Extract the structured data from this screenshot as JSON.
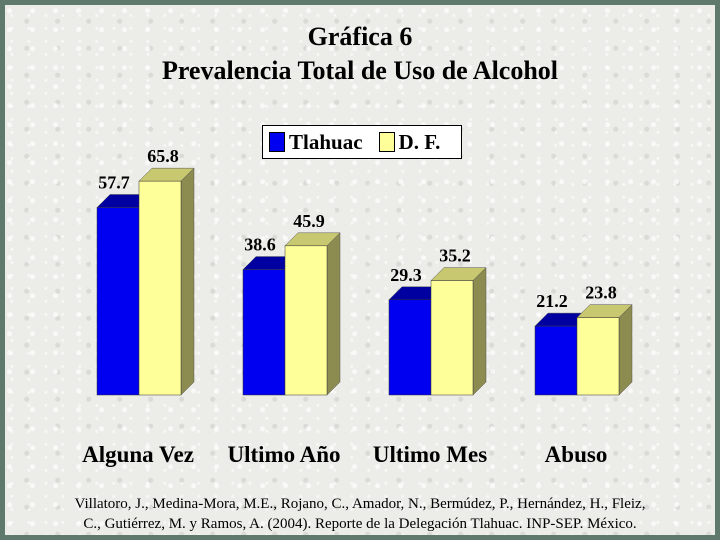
{
  "title": "Gráfica 6",
  "subtitle": "Prevalencia Total de Uso de Alcohol",
  "citation_line1": "Villatoro, J., Medina-Mora, M.E., Rojano, C., Amador, N., Bermúdez, P., Hernández, H., Fleiz,",
  "citation_line2": "C., Gutiérrez, M. y Ramos, A. (2004). Reporte de la Delegación Tlahuac. INP-SEP. México.",
  "colors": {
    "series_0_front": "#0000f0",
    "series_0_top": "#0000a0",
    "series_0_side": "#000080",
    "series_1_front": "#ffff99",
    "series_1_top": "#c8c870",
    "series_1_side": "#8c8c50"
  },
  "chart_data": {
    "type": "bar",
    "categories": [
      "Alguna Vez",
      "Ultimo Año",
      "Ultimo Mes",
      "Abuso"
    ],
    "series": [
      {
        "name": "Tlahuac",
        "values": [
          57.7,
          38.6,
          29.3,
          21.2
        ]
      },
      {
        "name": "D. F.",
        "values": [
          65.8,
          45.9,
          35.2,
          23.8
        ]
      }
    ],
    "ylim": [
      0,
      70
    ],
    "grid": false,
    "legend_position": "top-center",
    "data_labels": true
  }
}
